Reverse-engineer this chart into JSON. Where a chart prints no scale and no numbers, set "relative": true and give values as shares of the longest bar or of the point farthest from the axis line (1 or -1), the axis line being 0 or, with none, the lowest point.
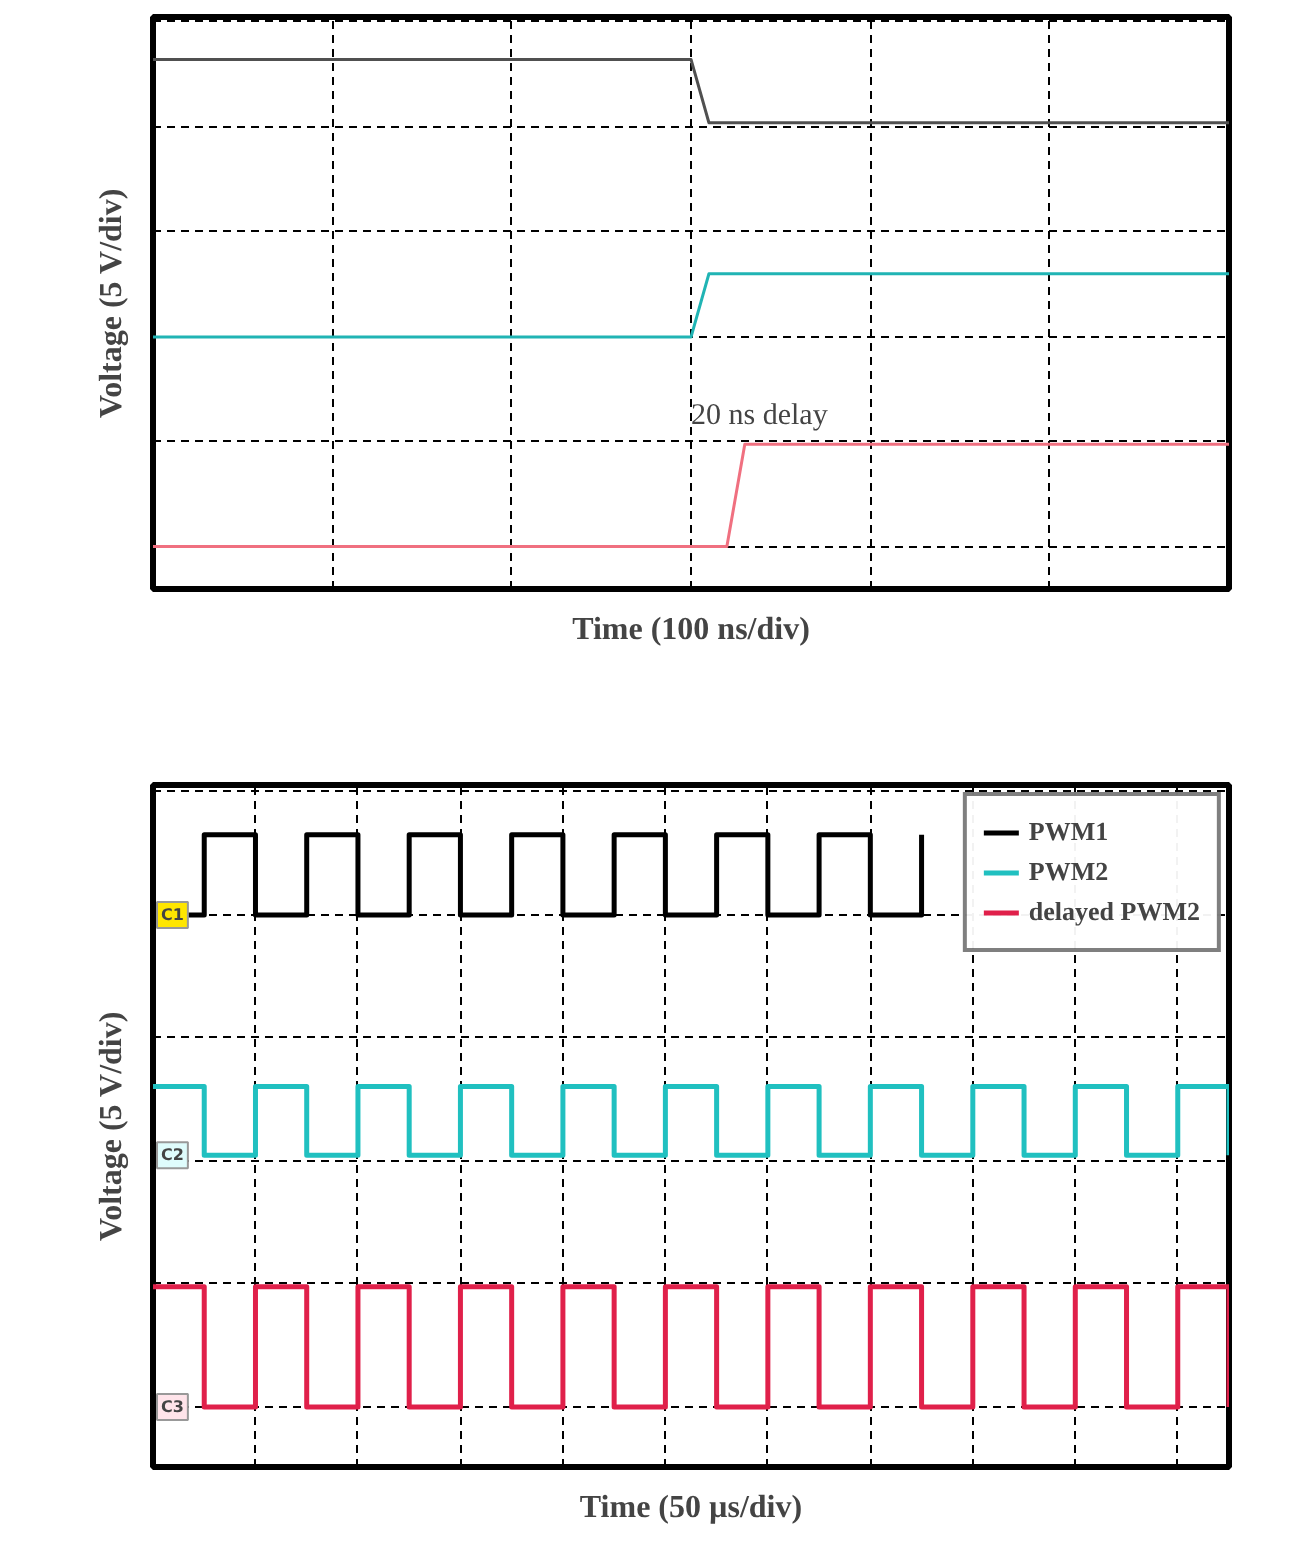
{
  "chart_data": [
    {
      "type": "line",
      "relative": true,
      "xlabel": "Time (100 ns/div)",
      "ylabel": "Voltage (5 V/div)",
      "grid": true,
      "tick_labels": false,
      "categories": [
        null,
        null,
        null,
        null,
        null,
        null,
        null,
        null,
        null,
        null,
        null,
        null,
        null,
        null,
        null,
        null,
        null,
        null,
        null,
        null,
        null,
        null,
        null,
        null,
        null,
        null,
        null,
        null,
        null,
        null,
        null,
        null,
        null,
        null,
        null,
        null,
        null,
        null,
        null,
        null,
        null,
        null,
        null,
        null,
        null,
        null,
        null,
        null,
        null,
        null,
        null,
        null,
        null,
        null,
        null,
        null,
        null,
        null,
        null,
        null,
        null
      ],
      "series": [
        {
          "color": "#505050",
          "values": [
            1,
            1,
            1,
            1,
            1,
            1,
            1,
            1,
            1,
            1,
            1,
            1,
            1,
            1,
            1,
            1,
            1,
            1,
            1,
            1,
            1,
            1,
            1,
            1,
            1,
            1,
            1,
            1,
            1,
            1,
            1,
            0.87,
            0.87,
            0.87,
            0.87,
            0.87,
            0.87,
            0.87,
            0.87,
            0.87,
            0.87,
            0.87,
            0.87,
            0.87,
            0.87,
            0.87,
            0.87,
            0.87,
            0.87,
            0.87,
            0.87,
            0.87,
            0.87,
            0.87,
            0.87,
            0.87,
            0.87,
            0.87,
            0.87,
            0.87,
            0.87
          ]
        },
        {
          "color": "#20b4b4",
          "values": [
            0.43,
            0.43,
            0.43,
            0.43,
            0.43,
            0.43,
            0.43,
            0.43,
            0.43,
            0.43,
            0.43,
            0.43,
            0.43,
            0.43,
            0.43,
            0.43,
            0.43,
            0.43,
            0.43,
            0.43,
            0.43,
            0.43,
            0.43,
            0.43,
            0.43,
            0.43,
            0.43,
            0.43,
            0.43,
            0.43,
            0.43,
            0.56,
            0.56,
            0.56,
            0.56,
            0.56,
            0.56,
            0.56,
            0.56,
            0.56,
            0.56,
            0.56,
            0.56,
            0.56,
            0.56,
            0.56,
            0.56,
            0.56,
            0.56,
            0.56,
            0.56,
            0.56,
            0.56,
            0.56,
            0.56,
            0.56,
            0.56,
            0.56,
            0.56,
            0.56,
            0.56
          ]
        },
        {
          "color": "#f07080",
          "values": [
            0,
            0,
            0,
            0,
            0,
            0,
            0,
            0,
            0,
            0,
            0,
            0,
            0,
            0,
            0,
            0,
            0,
            0,
            0,
            0,
            0,
            0,
            0,
            0,
            0,
            0,
            0,
            0,
            0,
            0,
            0,
            0,
            0,
            0.21,
            0.21,
            0.21,
            0.21,
            0.21,
            0.21,
            0.21,
            0.21,
            0.21,
            0.21,
            0.21,
            0.21,
            0.21,
            0.21,
            0.21,
            0.21,
            0.21,
            0.21,
            0.21,
            0.21,
            0.21,
            0.21,
            0.21,
            0.21,
            0.21,
            0.21,
            0.21,
            0.21
          ]
        }
      ],
      "annotations": [
        {
          "text": "20 ns delay",
          "y": 0.21
        }
      ]
    },
    {
      "type": "step",
      "relative": true,
      "xlabel": "Time (50 µs/div)",
      "ylabel": "Voltage (5 V/div)",
      "grid": true,
      "tick_labels": false,
      "legend": "top right",
      "categories": [
        null,
        null,
        null,
        null,
        null,
        null,
        null,
        null,
        null,
        null,
        null,
        null,
        null,
        null,
        null,
        null,
        null,
        null,
        null,
        null,
        null,
        null
      ],
      "series": [
        {
          "name": "PWM1",
          "color": "#000000",
          "values": [
            0.86,
            1,
            0.86,
            1,
            0.86,
            1,
            0.86,
            1,
            0.86,
            1,
            0.86,
            1,
            0.86,
            1,
            0.86,
            1,
            null,
            null,
            null,
            null,
            null,
            null
          ]
        },
        {
          "name": "PWM2",
          "color": "#20c0c0",
          "values": [
            0.56,
            0.44,
            0.56,
            0.44,
            0.56,
            0.44,
            0.56,
            0.44,
            0.56,
            0.44,
            0.56,
            0.44,
            0.56,
            0.44,
            0.56,
            0.44,
            0.56,
            0.44,
            0.56,
            0.44,
            0.56,
            0.44
          ]
        },
        {
          "name": "delayed PWM2",
          "color": "#e0204a",
          "values": [
            0.21,
            0,
            0.21,
            0,
            0.21,
            0,
            0.21,
            0,
            0.21,
            0,
            0.21,
            0,
            0.21,
            0,
            0.21,
            0,
            0.21,
            0,
            0.21,
            0,
            0.21,
            0
          ]
        }
      ],
      "annotations": [
        {
          "text": "C1",
          "y": 0.86
        },
        {
          "text": "C2",
          "y": 0.44
        },
        {
          "text": "C3",
          "y": 0
        }
      ]
    }
  ]
}
